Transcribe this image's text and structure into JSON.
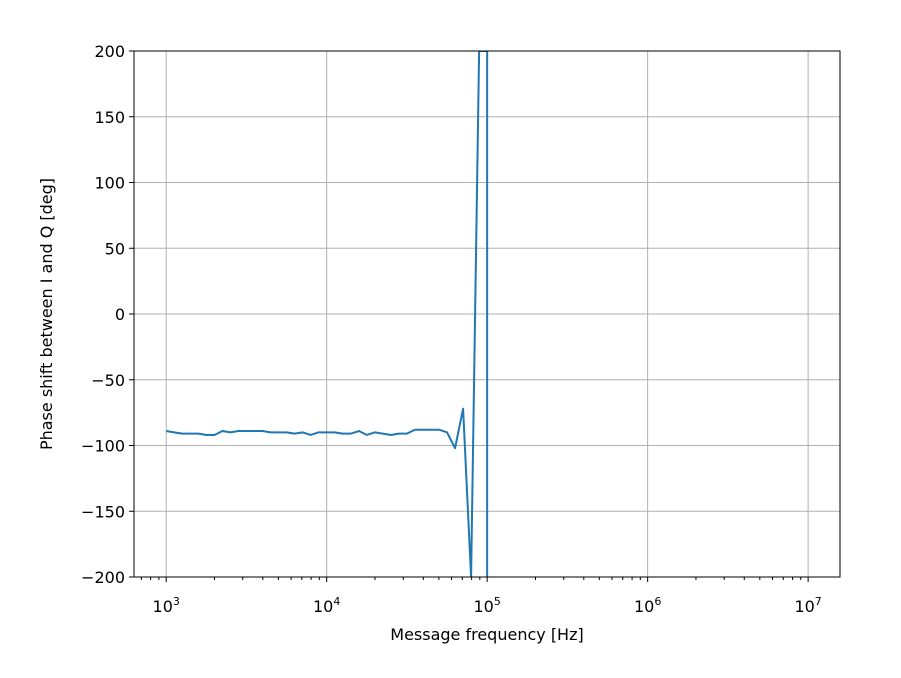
{
  "chart_data": {
    "type": "line",
    "title": "",
    "xlabel": "Message frequency [Hz]",
    "ylabel": "Phase shift between I and Q [deg]",
    "xscale": "log",
    "xlim": [
      630,
      15800000
    ],
    "ylim": [
      -200,
      200
    ],
    "grid": true,
    "x_ticks": [
      {
        "value": 1000,
        "base": "10",
        "exp": "3"
      },
      {
        "value": 10000,
        "base": "10",
        "exp": "4"
      },
      {
        "value": 100000,
        "base": "10",
        "exp": "5"
      },
      {
        "value": 1000000,
        "base": "10",
        "exp": "6"
      },
      {
        "value": 10000000,
        "base": "10",
        "exp": "7"
      }
    ],
    "y_ticks": [
      {
        "value": 200,
        "label": "200"
      },
      {
        "value": 150,
        "label": "150"
      },
      {
        "value": 100,
        "label": "100"
      },
      {
        "value": 50,
        "label": "50"
      },
      {
        "value": 0,
        "label": "0"
      },
      {
        "value": -50,
        "label": "−50"
      },
      {
        "value": -100,
        "label": "−100"
      },
      {
        "value": -150,
        "label": "−150"
      },
      {
        "value": -200,
        "label": "−200"
      }
    ],
    "series": [
      {
        "color": "#1f77b4",
        "x": [
          1000,
          1120,
          1260,
          1410,
          1590,
          1780,
          2000,
          2240,
          2510,
          2820,
          3160,
          3550,
          3980,
          4470,
          5010,
          5620,
          6310,
          7080,
          7940,
          8910,
          10000,
          11200,
          12600,
          14100,
          15900,
          17800,
          20000,
          22400,
          25100,
          28200,
          31600,
          35500,
          39800,
          44700,
          50100,
          56200,
          63100,
          70800,
          79400,
          89100,
          100000,
          100000
        ],
        "y": [
          -89,
          -90,
          -91,
          -91,
          -91,
          -92,
          -92,
          -89,
          -90,
          -89,
          -89,
          -89,
          -89,
          -90,
          -90,
          -90,
          -91,
          -90,
          -92,
          -90,
          -90,
          -90,
          -91,
          -91,
          -89,
          -92,
          -90,
          -91,
          -92,
          -91,
          -91,
          -88,
          -88,
          -88,
          -88,
          -90,
          -102,
          -72,
          -200,
          200,
          200,
          -200
        ]
      }
    ]
  }
}
